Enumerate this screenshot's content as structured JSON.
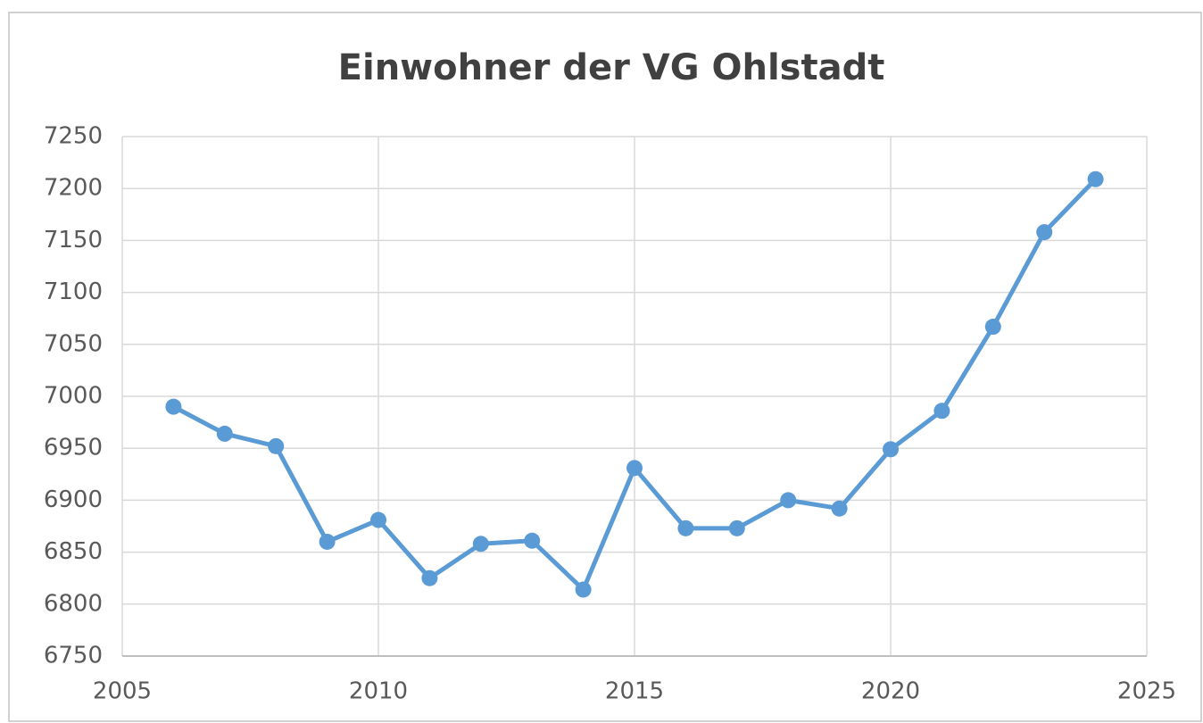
{
  "chart_data": {
    "type": "line",
    "title": "Einwohner der VG Ohlstadt",
    "x": [
      2006,
      2007,
      2008,
      2009,
      2010,
      2011,
      2012,
      2013,
      2014,
      2015,
      2016,
      2017,
      2018,
      2019,
      2020,
      2021,
      2022,
      2023,
      2024
    ],
    "series": [
      {
        "name": "Einwohner",
        "color": "#5b9bd5",
        "values": [
          6990,
          6964,
          6952,
          6860,
          6881,
          6825,
          6858,
          6861,
          6814,
          6931,
          6873,
          6873,
          6900,
          6892,
          6949,
          6986,
          7067,
          7158,
          7209
        ]
      }
    ],
    "xlim": [
      2005,
      2025
    ],
    "xticks": [
      2005,
      2010,
      2015,
      2020,
      2025
    ],
    "ylim": [
      6750,
      7250
    ],
    "yticks": [
      6750,
      6800,
      6850,
      6900,
      6950,
      7000,
      7050,
      7100,
      7150,
      7200,
      7250
    ],
    "grid": true
  }
}
